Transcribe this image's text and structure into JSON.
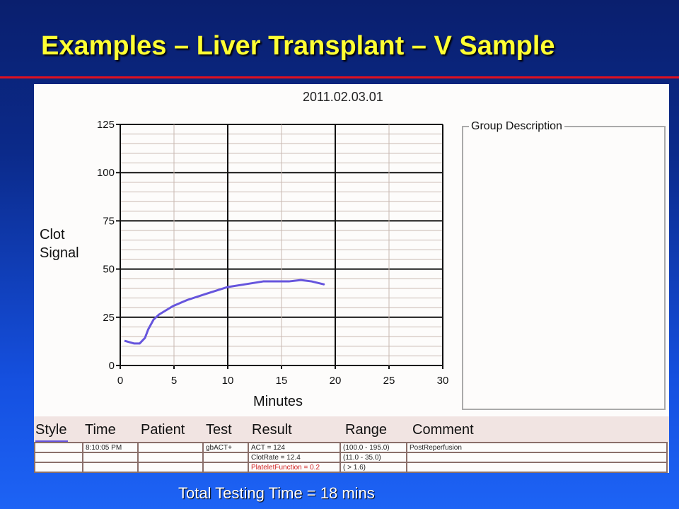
{
  "title": "Examples – Liver Transplant – V Sample",
  "footer": "Total Testing Time = 18 mins",
  "chart_data": {
    "type": "line",
    "title": "2011.02.03.01",
    "xlabel": "Minutes",
    "ylabel": [
      "Clot",
      "Signal"
    ],
    "xlim": [
      0,
      30
    ],
    "ylim": [
      0,
      125
    ],
    "xticks": [
      0,
      5,
      10,
      15,
      20,
      25,
      30
    ],
    "yticks": [
      0,
      25,
      50,
      75,
      100,
      125
    ],
    "grid": true,
    "series": [
      {
        "color": "#6655dd",
        "x": [
          0.4,
          1.3,
          1.8,
          2.3,
          2.6,
          3.1,
          3.6,
          4.9,
          6.25,
          7.9,
          10,
          11.5,
          13.3,
          15.7,
          16.8,
          17.8,
          19
        ],
        "y": [
          12.8,
          11.4,
          11.4,
          14.3,
          18.7,
          23.8,
          26.4,
          30.8,
          34,
          37,
          40.7,
          42,
          43.6,
          43.6,
          44.3,
          43.6,
          42
        ]
      }
    ]
  },
  "group_box": {
    "label": "Group   Description"
  },
  "table": {
    "headers": [
      "Style",
      "Time",
      "Patient",
      "Test",
      "Result",
      "Range",
      "Comment"
    ],
    "rows": [
      [
        "",
        "8:10:05 PM",
        "",
        "gbACT+",
        "ACT = 124",
        "(100.0 - 195.0)",
        "PostReperfusion"
      ],
      [
        "",
        "",
        "",
        "",
        "ClotRate = 12.4",
        "(11.0 - 35.0)",
        ""
      ],
      [
        "",
        "",
        "",
        "",
        "PlateletFunction = 0.2",
        "( > 1.6)",
        ""
      ]
    ],
    "alert_color": "#d02020"
  }
}
